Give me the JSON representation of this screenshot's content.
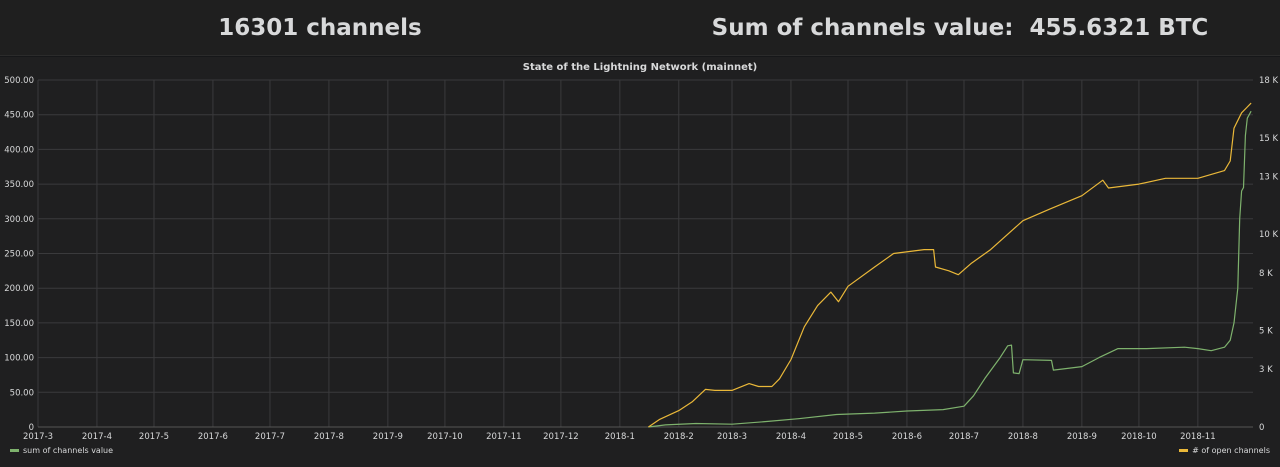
{
  "stats": {
    "channels_text": "16301 channels",
    "value_label": "Sum of channels value:",
    "value_text": "455.6321 BTC"
  },
  "colors": {
    "value_series": "#7eb26d",
    "channels_series": "#eab839",
    "grid": "#3a3a3c",
    "text": "#d8d9da"
  },
  "chart_data": {
    "type": "line",
    "title": "State of the Lightning Network (mainnet)",
    "x_ticks": [
      "2017-3",
      "2017-4",
      "2017-5",
      "2017-6",
      "2017-7",
      "2017-8",
      "2017-9",
      "2017-10",
      "2017-11",
      "2017-12",
      "2018-1",
      "2018-2",
      "2018-3",
      "2018-4",
      "2018-5",
      "2018-6",
      "2018-7",
      "2018-8",
      "2018-9",
      "2018-10",
      "2018-11"
    ],
    "xlim": [
      "2017-03-01",
      "2018-11-30"
    ],
    "y_left": {
      "ticks": [
        "0",
        "50.00",
        "100.00",
        "150.00",
        "200.00",
        "250.00",
        "300.00",
        "350.00",
        "400.00",
        "450.00",
        "500.00"
      ],
      "ylim": [
        0,
        500
      ]
    },
    "y_right": {
      "ticks": [
        "0",
        "3 K",
        "5 K",
        "8 K",
        "10 K",
        "13 K",
        "15 K",
        "18 K"
      ],
      "ylim": [
        0,
        18000
      ]
    },
    "grid": true,
    "legend": [
      "bottom-left",
      "bottom-right"
    ],
    "series": [
      {
        "name": "sum of channels value",
        "axis": "left",
        "points": [
          [
            "2018-01-16",
            0
          ],
          [
            "2018-01-25",
            3
          ],
          [
            "2018-02-10",
            5
          ],
          [
            "2018-03-01",
            4
          ],
          [
            "2018-03-20",
            8
          ],
          [
            "2018-04-05",
            12
          ],
          [
            "2018-04-25",
            18
          ],
          [
            "2018-05-15",
            20
          ],
          [
            "2018-06-01",
            23
          ],
          [
            "2018-06-20",
            25
          ],
          [
            "2018-07-01",
            30
          ],
          [
            "2018-07-06",
            45
          ],
          [
            "2018-07-12",
            70
          ],
          [
            "2018-07-20",
            100
          ],
          [
            "2018-07-24",
            117
          ],
          [
            "2018-07-26",
            118
          ],
          [
            "2018-07-27",
            78
          ],
          [
            "2018-07-30",
            77
          ],
          [
            "2018-08-01",
            97
          ],
          [
            "2018-08-16",
            96
          ],
          [
            "2018-08-17",
            82
          ],
          [
            "2018-09-01",
            87
          ],
          [
            "2018-09-10",
            100
          ],
          [
            "2018-09-20",
            113
          ],
          [
            "2018-10-05",
            113
          ],
          [
            "2018-10-25",
            115
          ],
          [
            "2018-11-01",
            113
          ],
          [
            "2018-11-08",
            110
          ],
          [
            "2018-11-15",
            115
          ],
          [
            "2018-11-18",
            125
          ],
          [
            "2018-11-20",
            150
          ],
          [
            "2018-11-22",
            200
          ],
          [
            "2018-11-23",
            300
          ],
          [
            "2018-11-24",
            340
          ],
          [
            "2018-11-25",
            345
          ],
          [
            "2018-11-26",
            420
          ],
          [
            "2018-11-27",
            445
          ],
          [
            "2018-11-29",
            455
          ]
        ]
      },
      {
        "name": "# of open channels",
        "axis": "right",
        "points": [
          [
            "2018-01-16",
            0
          ],
          [
            "2018-01-22",
            400
          ],
          [
            "2018-02-01",
            850
          ],
          [
            "2018-02-08",
            1300
          ],
          [
            "2018-02-15",
            1950
          ],
          [
            "2018-02-20",
            1900
          ],
          [
            "2018-03-01",
            1900
          ],
          [
            "2018-03-10",
            2250
          ],
          [
            "2018-03-15",
            2100
          ],
          [
            "2018-03-22",
            2100
          ],
          [
            "2018-03-26",
            2500
          ],
          [
            "2018-04-01",
            3500
          ],
          [
            "2018-04-08",
            5200
          ],
          [
            "2018-04-15",
            6300
          ],
          [
            "2018-04-22",
            7000
          ],
          [
            "2018-04-26",
            6500
          ],
          [
            "2018-05-01",
            7300
          ],
          [
            "2018-05-15",
            8300
          ],
          [
            "2018-05-25",
            9000
          ],
          [
            "2018-06-10",
            9200
          ],
          [
            "2018-06-15",
            9200
          ],
          [
            "2018-06-16",
            8300
          ],
          [
            "2018-06-23",
            8100
          ],
          [
            "2018-06-28",
            7900
          ],
          [
            "2018-07-05",
            8500
          ],
          [
            "2018-07-15",
            9200
          ],
          [
            "2018-08-01",
            10700
          ],
          [
            "2018-08-15",
            11300
          ],
          [
            "2018-09-01",
            12000
          ],
          [
            "2018-09-12",
            12800
          ],
          [
            "2018-09-15",
            12400
          ],
          [
            "2018-10-01",
            12600
          ],
          [
            "2018-10-15",
            12900
          ],
          [
            "2018-11-01",
            12900
          ],
          [
            "2018-11-15",
            13300
          ],
          [
            "2018-11-18",
            13800
          ],
          [
            "2018-11-20",
            15500
          ],
          [
            "2018-11-24",
            16300
          ],
          [
            "2018-11-27",
            16600
          ],
          [
            "2018-11-29",
            16800
          ]
        ]
      }
    ]
  }
}
